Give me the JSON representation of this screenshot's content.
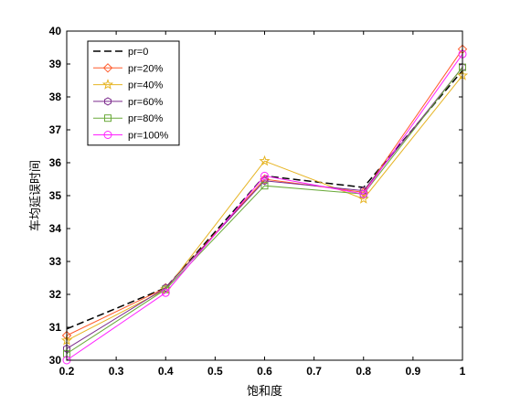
{
  "chart_data": {
    "type": "line",
    "xlabel": "饱和度",
    "ylabel": "车均延误时间",
    "xlim": [
      0.2,
      1.0
    ],
    "ylim": [
      30,
      40
    ],
    "xticks": [
      0.2,
      0.3,
      0.4,
      0.5,
      0.6,
      0.7,
      0.8,
      0.9,
      1.0
    ],
    "xtick_labels": [
      "0.2",
      "0.3",
      "0.4",
      "0.5",
      "0.6",
      "0.7",
      "0.8",
      "0.9",
      "1"
    ],
    "yticks": [
      30,
      31,
      32,
      33,
      34,
      35,
      36,
      37,
      38,
      39,
      40
    ],
    "ytick_labels": [
      "30",
      "31",
      "32",
      "33",
      "34",
      "35",
      "36",
      "37",
      "38",
      "39",
      "40"
    ],
    "grid": false,
    "legend_position": "top-left",
    "x": [
      0.2,
      0.4,
      0.6,
      0.8,
      1.0
    ],
    "series": [
      {
        "name": "pr=0",
        "values": [
          30.95,
          32.2,
          35.6,
          35.25,
          38.8
        ],
        "color": "#000000",
        "marker": "none",
        "dashed": true
      },
      {
        "name": "pr=20%",
        "values": [
          30.75,
          32.2,
          35.5,
          35.1,
          39.45
        ],
        "color": "#ff5a2a",
        "marker": "diamond",
        "dashed": false
      },
      {
        "name": "pr=40%",
        "values": [
          30.6,
          32.15,
          36.05,
          34.9,
          38.65
        ],
        "color": "#e6b422",
        "marker": "star",
        "dashed": false
      },
      {
        "name": "pr=60%",
        "values": [
          30.35,
          32.2,
          35.45,
          35.15,
          38.9
        ],
        "color": "#7b2a8c",
        "marker": "hexagon",
        "dashed": false
      },
      {
        "name": "pr=80%",
        "values": [
          30.2,
          32.15,
          35.3,
          35.05,
          38.9
        ],
        "color": "#6aaa3a",
        "marker": "square",
        "dashed": false
      },
      {
        "name": "pr=100%",
        "values": [
          30.0,
          32.05,
          35.6,
          35.05,
          39.3
        ],
        "color": "#ff22ff",
        "marker": "circle",
        "dashed": false
      }
    ]
  }
}
